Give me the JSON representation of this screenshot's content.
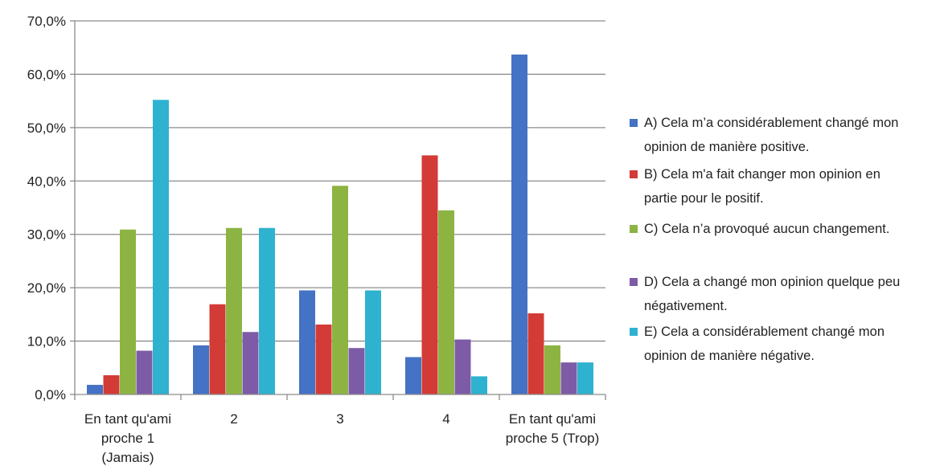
{
  "chart_data": {
    "type": "bar",
    "categories": [
      [
        "En tant qu'ami",
        "proche 1",
        "(Jamais)"
      ],
      [
        "2"
      ],
      [
        "3"
      ],
      [
        "4"
      ],
      [
        "En tant qu'ami",
        "proche 5 (Trop)"
      ]
    ],
    "ylim": [
      0,
      70
    ],
    "ytick_step": 10,
    "ytick_labels": [
      "0,0%",
      "10,0%",
      "20,0%",
      "30,0%",
      "40,0%",
      "50,0%",
      "60,0%",
      "70,0%"
    ],
    "grid": true,
    "legend_position": "right",
    "title": "",
    "xlabel": "",
    "ylabel": "",
    "series": [
      {
        "name_lines": [
          "A) Cela m’a considérablement changé  mon",
          "opinion de manière positive."
        ],
        "color": "#4472C4",
        "values": [
          1.8,
          9.2,
          19.5,
          7.0,
          63.7
        ]
      },
      {
        "name_lines": [
          "B) Cela m'a fait changer mon opinion en",
          "partie pour le positif."
        ],
        "color": "#D23B36",
        "values": [
          3.6,
          16.9,
          13.1,
          44.8,
          15.2
        ]
      },
      {
        "name_lines": [
          "C) Cela n’a provoqué aucun changement."
        ],
        "color": "#8DB443",
        "values": [
          30.9,
          31.2,
          39.1,
          34.5,
          9.2
        ]
      },
      {
        "name_lines": [
          "D) Cela a changé mon opinion quelque peu",
          "négativement."
        ],
        "color": "#7D5BA6",
        "values": [
          8.2,
          11.7,
          8.7,
          10.3,
          6.0
        ]
      },
      {
        "name_lines": [
          "E) Cela a considérablement changé mon",
          "opinion de manière négative."
        ],
        "color": "#2FB2D0",
        "values": [
          55.2,
          31.2,
          19.5,
          3.4,
          6.0
        ]
      }
    ]
  }
}
